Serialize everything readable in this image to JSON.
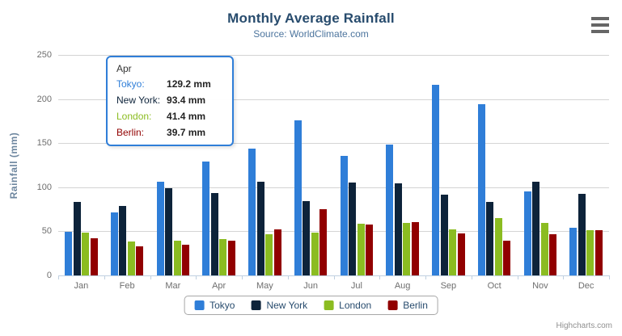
{
  "title": "Monthly Average Rainfall",
  "subtitle": "Source: WorldClimate.com",
  "credit": "Highcharts.com",
  "colors": {
    "title": "#274b6d",
    "subtitle": "#4d759e",
    "axis_text": "#6e6e6e",
    "y_title": "#6d869f",
    "grid": "#d4d4d4",
    "axis_line": "#c0d0e0",
    "legend_text": "#274b6d",
    "legend_border": "#a7a7a7",
    "credit": "#909090",
    "tooltip_border": "#2f7ed8",
    "menu_icon": "#666666"
  },
  "chart_data": {
    "type": "bar",
    "title": "Monthly Average Rainfall",
    "subtitle": "Source: WorldClimate.com",
    "categories": [
      "Jan",
      "Feb",
      "Mar",
      "Apr",
      "May",
      "Jun",
      "Jul",
      "Aug",
      "Sep",
      "Oct",
      "Nov",
      "Dec"
    ],
    "series": [
      {
        "name": "Tokyo",
        "color": "#2f7ed8",
        "values": [
          49.9,
          71.5,
          106.4,
          129.2,
          144.0,
          176.0,
          135.6,
          148.5,
          216.4,
          194.1,
          95.6,
          54.4
        ]
      },
      {
        "name": "New York",
        "color": "#0d233a",
        "values": [
          83.6,
          78.8,
          98.5,
          93.4,
          106.0,
          84.5,
          105.0,
          104.3,
          91.2,
          83.5,
          106.6,
          92.3
        ]
      },
      {
        "name": "London",
        "color": "#8bbc21",
        "values": [
          48.9,
          38.8,
          39.3,
          41.4,
          47.0,
          48.3,
          59.0,
          59.6,
          52.4,
          65.2,
          59.3,
          51.2
        ]
      },
      {
        "name": "Berlin",
        "color": "#910000",
        "values": [
          42.4,
          33.2,
          34.5,
          39.7,
          52.6,
          75.5,
          57.4,
          60.4,
          47.6,
          39.1,
          46.8,
          51.1
        ]
      }
    ],
    "xlabel": "",
    "ylabel": "Rainfall (mm)",
    "ylim": [
      0,
      250
    ],
    "ytick_step": 50,
    "grid": true,
    "legend_position": "bottom"
  },
  "tooltip": {
    "header": "Apr",
    "rows": [
      {
        "label": "Tokyo:",
        "value": "129.2 mm",
        "color": "#2f7ed8"
      },
      {
        "label": "New York:",
        "value": "93.4 mm",
        "color": "#0d233a"
      },
      {
        "label": "London:",
        "value": "41.4 mm",
        "color": "#8bbc21"
      },
      {
        "label": "Berlin:",
        "value": "39.7 mm",
        "color": "#910000"
      }
    ]
  }
}
